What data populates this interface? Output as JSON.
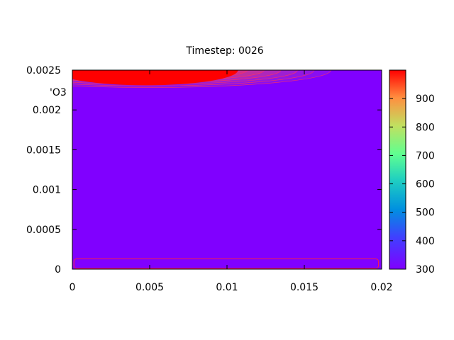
{
  "chart_data": {
    "type": "heatmap",
    "title": "Timestep: 0026",
    "series_label": "'O3",
    "x_ticks": [
      "0",
      "0.005",
      "0.01",
      "0.015",
      "0.02"
    ],
    "y_ticks": [
      "0",
      "0.0005",
      "0.001",
      "0.0015",
      "0.002",
      "0.0025"
    ],
    "colorbar_ticks": [
      "300",
      "400",
      "500",
      "600",
      "700",
      "800",
      "900"
    ],
    "xlim": [
      0,
      0.02
    ],
    "ylim": [
      0,
      0.0025
    ],
    "zlim": [
      300,
      1000
    ],
    "background_value": 300,
    "hotspot": {
      "x_center": 0.005,
      "y_top": 0.0025,
      "peak": 1000,
      "extent_x": 0.006,
      "extent_y": 0.0002
    },
    "contour_rect": {
      "x0": 0.0001,
      "x1": 0.0198,
      "y0": 0.0,
      "y1": 0.00013,
      "value": 980
    },
    "grid": false,
    "colormap": "rainbow",
    "colors": {
      "background": "#8000ff",
      "hot": "#ff0000",
      "contour": "#ff2040"
    }
  }
}
